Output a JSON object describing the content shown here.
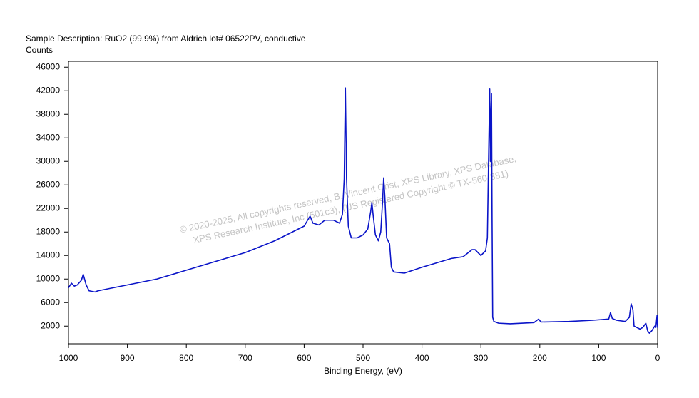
{
  "chart_data": {
    "type": "line",
    "title": "Sample Description:  RuO2 (99.9%) from Aldrich lot# 06522PV, conductive",
    "y_label": "Counts",
    "x_label": "Binding Energy, (eV)",
    "watermark": [
      "©  2020-2025,  All copyrights reserved,   B. Vincent Crist,  XPS Library, XPS Database,",
      "XPS Research Institute, Inc (501c3), (US Registered Copyright © TX-560-881)"
    ],
    "xlim": [
      1000,
      0
    ],
    "xticks": [
      1000,
      900,
      800,
      700,
      600,
      500,
      400,
      300,
      200,
      100,
      0
    ],
    "ylim": [
      -1000,
      47000
    ],
    "yticks": [
      2000,
      6000,
      10000,
      14000,
      18000,
      22000,
      26000,
      30000,
      34000,
      38000,
      42000,
      46000
    ],
    "series": [
      {
        "color": "#0a14c8",
        "x": [
          1000,
          995,
          990,
          985,
          978,
          975,
          970,
          965,
          955,
          950,
          900,
          850,
          800,
          750,
          700,
          650,
          600,
          590,
          585,
          575,
          565,
          550,
          540,
          535,
          532,
          530,
          528,
          525,
          520,
          510,
          500,
          492,
          487,
          485,
          483,
          479,
          474,
          470,
          467,
          465,
          463,
          460,
          455,
          452,
          448,
          430,
          400,
          350,
          330,
          315,
          310,
          300,
          292,
          289,
          287,
          285,
          284,
          283,
          282,
          281,
          280,
          278,
          270,
          250,
          210,
          202,
          198,
          150,
          110,
          83,
          80,
          77,
          70,
          55,
          48,
          45,
          42,
          40,
          30,
          25,
          20,
          17,
          14,
          10,
          5,
          3,
          1,
          0
        ],
        "values": [
          8500,
          9300,
          8800,
          9000,
          9800,
          10800,
          9000,
          8000,
          7800,
          8000,
          9000,
          10000,
          11500,
          13000,
          14500,
          16500,
          19000,
          20700,
          19500,
          19200,
          20000,
          20000,
          19500,
          21000,
          27000,
          42500,
          27000,
          19000,
          17000,
          17000,
          17500,
          18500,
          21500,
          23000,
          21000,
          17500,
          16500,
          18000,
          23000,
          27200,
          24000,
          17000,
          16000,
          12000,
          11200,
          11000,
          12000,
          13500,
          13800,
          15000,
          15000,
          14000,
          14800,
          17000,
          30000,
          42300,
          30000,
          38000,
          41500,
          20000,
          3500,
          2800,
          2500,
          2400,
          2600,
          3200,
          2700,
          2800,
          3000,
          3200,
          4300,
          3300,
          3000,
          2800,
          3500,
          5800,
          4800,
          2000,
          1500,
          1800,
          2500,
          1200,
          800,
          1200,
          2000,
          1800,
          3800,
          1700
        ]
      }
    ]
  }
}
